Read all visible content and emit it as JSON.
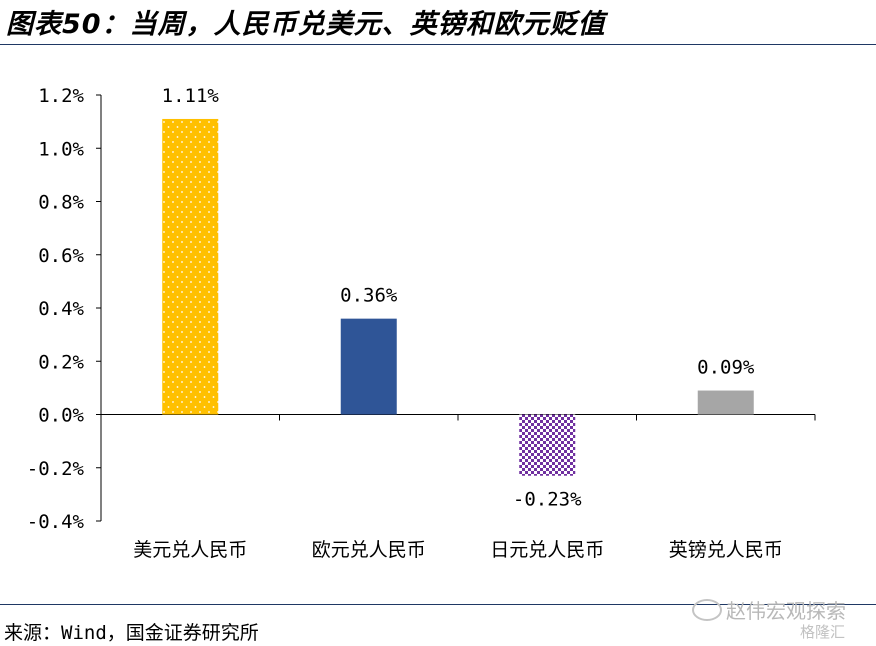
{
  "title": "图表50：当周，人民币兑美元、英镑和欧元贬值",
  "source": "来源：Wind，国金证券研究所",
  "watermark": {
    "main": "赵伟宏观探索",
    "sub": "格隆汇"
  },
  "colors": {
    "rule": "#1f3864",
    "axis": "#000000"
  },
  "chart_data": {
    "type": "bar",
    "categories": [
      "美元兑人民币",
      "欧元兑人民币",
      "日元兑人民币",
      "英镑兑人民币"
    ],
    "values": [
      1.11,
      0.36,
      -0.23,
      0.09
    ],
    "data_labels": [
      "1.11%",
      "0.36%",
      "-0.23%",
      "0.09%"
    ],
    "bar_colors": [
      "#ffc000",
      "#2f5597",
      "#7030a0",
      "#a6a6a6"
    ],
    "bar_patterns": [
      "dots",
      "solid",
      "checker",
      "solid"
    ],
    "ylim": [
      -0.4,
      1.2
    ],
    "yticks": [
      -0.4,
      -0.2,
      0.0,
      0.2,
      0.4,
      0.6,
      0.8,
      1.0,
      1.2
    ],
    "ytick_labels": [
      "-0.4%",
      "-0.2%",
      "0.0%",
      "0.2%",
      "0.4%",
      "0.6%",
      "0.8%",
      "1.0%",
      "1.2%"
    ],
    "grid": false,
    "legend": "none"
  }
}
